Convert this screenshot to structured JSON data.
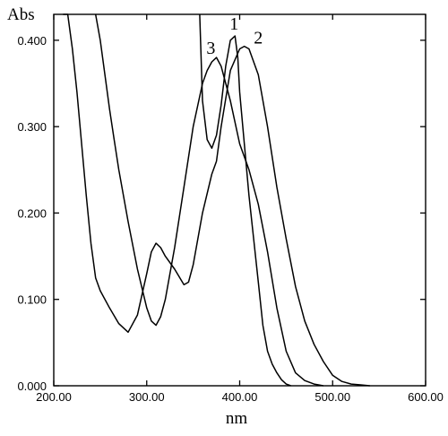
{
  "chart_data": {
    "type": "line",
    "xlabel": "nm",
    "ylabel": "Abs",
    "xlim": [
      200,
      600
    ],
    "ylim": [
      0,
      0.43
    ],
    "x_ticks": [
      200,
      300,
      400,
      500,
      600
    ],
    "x_tick_labels": [
      "200.00",
      "300.00",
      "400.00",
      "500.00",
      "600.00"
    ],
    "y_ticks": [
      0,
      0.1,
      0.2,
      0.3,
      0.4
    ],
    "y_tick_labels": [
      "0.000",
      "0.100",
      "0.200",
      "0.300",
      "0.400"
    ],
    "grid": false,
    "series": [
      {
        "name": "1",
        "label_at": [
          394,
          0.408
        ],
        "x": [
          357,
          360,
          365,
          370,
          375,
          380,
          385,
          390,
          395,
          398,
          400,
          405,
          410,
          415,
          420,
          425,
          430,
          435,
          440,
          445,
          450,
          455
        ],
        "y": [
          0.43,
          0.33,
          0.285,
          0.275,
          0.29,
          0.325,
          0.37,
          0.4,
          0.405,
          0.38,
          0.34,
          0.28,
          0.22,
          0.17,
          0.12,
          0.07,
          0.04,
          0.025,
          0.015,
          0.007,
          0.002,
          0.0
        ]
      },
      {
        "name": "2",
        "label_at": [
          420,
          0.392
        ],
        "x": [
          210,
          215,
          220,
          225,
          230,
          235,
          240,
          245,
          250,
          260,
          270,
          280,
          290,
          300,
          305,
          310,
          315,
          320,
          330,
          340,
          345,
          350,
          360,
          370,
          375,
          380,
          390,
          400,
          405,
          410,
          420,
          430,
          440,
          450,
          460,
          470,
          480,
          490,
          500,
          510,
          520,
          530,
          540
        ],
        "y": [
          0.43,
          0.43,
          0.39,
          0.34,
          0.28,
          0.22,
          0.165,
          0.125,
          0.11,
          0.09,
          0.072,
          0.062,
          0.082,
          0.13,
          0.155,
          0.165,
          0.16,
          0.15,
          0.135,
          0.117,
          0.12,
          0.14,
          0.2,
          0.245,
          0.26,
          0.3,
          0.365,
          0.39,
          0.393,
          0.39,
          0.36,
          0.3,
          0.23,
          0.17,
          0.115,
          0.075,
          0.048,
          0.028,
          0.012,
          0.005,
          0.002,
          0.001,
          0.0
        ]
      },
      {
        "name": "3",
        "label_at": [
          369,
          0.38
        ],
        "x": [
          245,
          250,
          255,
          260,
          265,
          270,
          280,
          290,
          300,
          305,
          310,
          315,
          320,
          330,
          340,
          350,
          360,
          365,
          370,
          375,
          380,
          390,
          400,
          410,
          420,
          430,
          440,
          450,
          460,
          470,
          480,
          490
        ],
        "y": [
          0.43,
          0.4,
          0.36,
          0.32,
          0.285,
          0.25,
          0.19,
          0.135,
          0.09,
          0.075,
          0.07,
          0.08,
          0.1,
          0.16,
          0.23,
          0.3,
          0.35,
          0.365,
          0.375,
          0.38,
          0.37,
          0.33,
          0.28,
          0.25,
          0.21,
          0.155,
          0.09,
          0.04,
          0.015,
          0.006,
          0.002,
          0.0
        ]
      }
    ]
  }
}
